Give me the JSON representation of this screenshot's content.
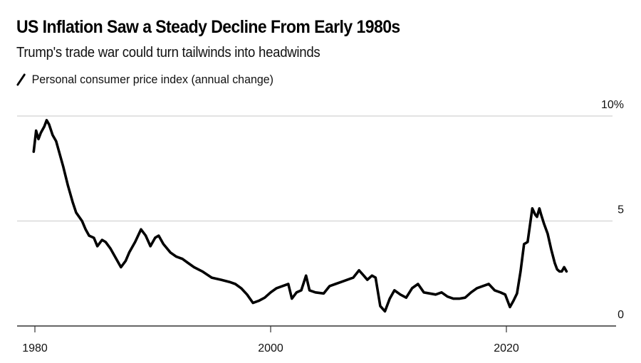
{
  "header": {
    "title": "US Inflation Saw a Steady Decline From Early 1980s",
    "subtitle": "Trump's trade war could turn tailwinds into headwinds",
    "legend_label": "Personal consumer price index (annual change)"
  },
  "chart_data": {
    "type": "line",
    "title": "US Inflation Saw a Steady Decline From Early 1980s",
    "subtitle": "Trump's trade war could turn tailwinds into headwinds",
    "xlabel": "",
    "ylabel": "",
    "xlim": [
      1979.9,
      2025.2
    ],
    "ylim": [
      0,
      10
    ],
    "x_ticks": [
      1980,
      2000,
      2020
    ],
    "x_tick_labels": [
      "1980",
      "2000",
      "2020"
    ],
    "y_ticks": [
      0,
      5,
      10
    ],
    "y_tick_labels": [
      "0",
      "5",
      "10%"
    ],
    "grid": "horizontal",
    "legend_position": "top-left",
    "line_color": "#000000",
    "grid_color": "#d9d9d9",
    "series": [
      {
        "name": "Personal consumer price index (annual change)",
        "x": [
          1979.9,
          1980.1,
          1980.3,
          1980.5,
          1980.8,
          1981.0,
          1981.2,
          1981.5,
          1981.8,
          1982.0,
          1982.4,
          1982.8,
          1983.2,
          1983.5,
          1984.0,
          1984.3,
          1984.6,
          1985.0,
          1985.3,
          1985.7,
          1986.0,
          1986.4,
          1986.8,
          1987.3,
          1987.7,
          1988.0,
          1988.5,
          1989.0,
          1989.4,
          1989.8,
          1990.2,
          1990.5,
          1990.9,
          1991.5,
          1992.0,
          1992.5,
          1993.0,
          1993.5,
          1994.2,
          1995.0,
          1995.8,
          1996.5,
          1997.0,
          1997.5,
          1998.0,
          1998.5,
          1999.0,
          1999.5,
          2000.0,
          2000.5,
          2001.0,
          2001.5,
          2001.8,
          2002.2,
          2002.6,
          2003.0,
          2003.3,
          2003.8,
          2004.5,
          2005.0,
          2005.5,
          2006.0,
          2006.5,
          2007.0,
          2007.5,
          2007.9,
          2008.2,
          2008.6,
          2008.9,
          2009.3,
          2009.7,
          2010.1,
          2010.5,
          2011.0,
          2011.5,
          2012.0,
          2012.5,
          2013.0,
          2013.5,
          2014.0,
          2014.5,
          2015.0,
          2015.5,
          2016.0,
          2016.5,
          2017.0,
          2017.5,
          2018.0,
          2018.5,
          2019.0,
          2019.5,
          2019.9,
          2020.3,
          2020.6,
          2020.9,
          2021.2,
          2021.5,
          2021.8,
          2022.0,
          2022.2,
          2022.45,
          2022.6,
          2022.8,
          2022.95,
          2023.2,
          2023.5,
          2023.8,
          2024.1,
          2024.3,
          2024.5,
          2024.7,
          2024.9,
          2025.1
        ],
        "values": [
          8.3,
          9.3,
          8.9,
          9.2,
          9.5,
          9.8,
          9.6,
          9.1,
          8.8,
          8.4,
          7.6,
          6.7,
          5.9,
          5.4,
          5.0,
          4.6,
          4.3,
          4.2,
          3.8,
          4.1,
          4.0,
          3.7,
          3.3,
          2.8,
          3.1,
          3.5,
          4.0,
          4.6,
          4.3,
          3.8,
          4.2,
          4.3,
          3.9,
          3.5,
          3.3,
          3.2,
          3.0,
          2.8,
          2.6,
          2.3,
          2.2,
          2.1,
          2.0,
          1.8,
          1.5,
          1.1,
          1.2,
          1.35,
          1.6,
          1.8,
          1.9,
          2.0,
          1.3,
          1.6,
          1.7,
          2.4,
          1.7,
          1.6,
          1.55,
          1.9,
          2.0,
          2.1,
          2.2,
          2.3,
          2.65,
          2.4,
          2.2,
          2.4,
          2.3,
          0.95,
          0.7,
          1.3,
          1.7,
          1.5,
          1.35,
          1.8,
          2.0,
          1.6,
          1.55,
          1.5,
          1.6,
          1.4,
          1.3,
          1.3,
          1.35,
          1.6,
          1.8,
          1.9,
          2.0,
          1.7,
          1.6,
          1.5,
          0.9,
          1.2,
          1.55,
          2.6,
          3.9,
          4.0,
          4.8,
          5.6,
          5.3,
          5.2,
          5.6,
          5.3,
          4.85,
          4.4,
          3.65,
          3.0,
          2.7,
          2.6,
          2.6,
          2.8,
          2.6
        ]
      }
    ]
  }
}
